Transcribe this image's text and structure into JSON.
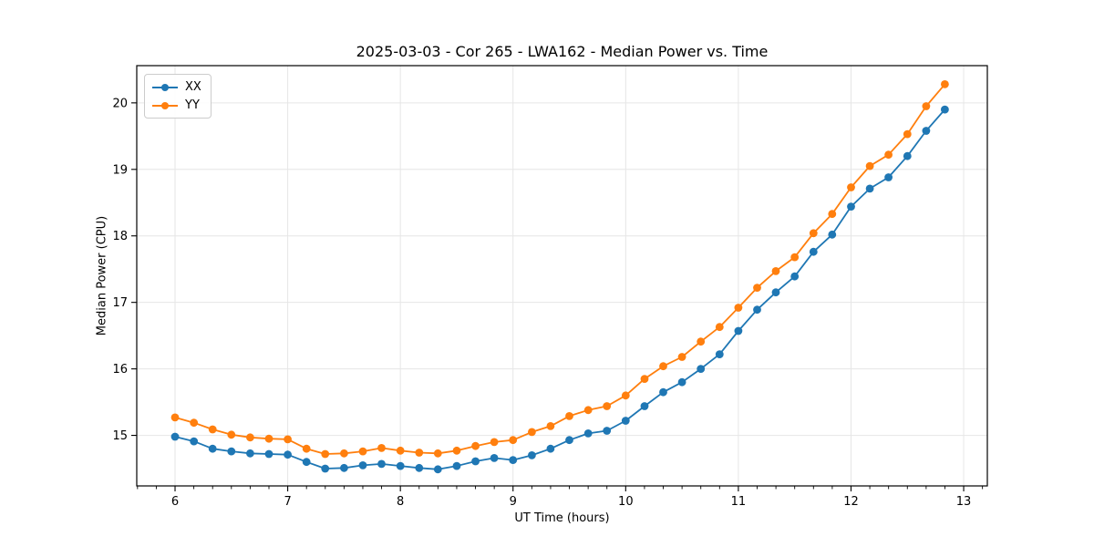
{
  "title": "2025-03-03 - Cor 265 - LWA162 - Median Power vs. Time",
  "chart_data": {
    "type": "line",
    "title": "2025-03-03 - Cor 265 - LWA162 - Median Power vs. Time",
    "xlabel": "UT Time (hours)",
    "ylabel": "Median Power (CPU)",
    "xlim": [
      5.66,
      13.21
    ],
    "ylim": [
      14.24,
      20.56
    ],
    "x_ticks": [
      6,
      7,
      8,
      9,
      10,
      11,
      12,
      13
    ],
    "y_ticks": [
      15,
      16,
      17,
      18,
      19,
      20
    ],
    "x_minor_tick_interval": 0.16667,
    "grid": true,
    "grid_color": "#e6e6e6",
    "legend_position": "upper-left",
    "x": [
      6.0,
      6.167,
      6.333,
      6.5,
      6.667,
      6.833,
      7.0,
      7.167,
      7.333,
      7.5,
      7.667,
      7.833,
      8.0,
      8.167,
      8.333,
      8.5,
      8.667,
      8.833,
      9.0,
      9.167,
      9.333,
      9.5,
      9.667,
      9.833,
      10.0,
      10.167,
      10.333,
      10.5,
      10.667,
      10.833,
      11.0,
      11.167,
      11.333,
      11.5,
      11.667,
      11.833,
      12.0,
      12.167,
      12.333,
      12.5,
      12.667,
      12.833
    ],
    "series": [
      {
        "name": "XX",
        "color": "#1f77b4",
        "values": [
          14.98,
          14.91,
          14.8,
          14.76,
          14.73,
          14.72,
          14.71,
          14.6,
          14.5,
          14.51,
          14.55,
          14.57,
          14.54,
          14.51,
          14.49,
          14.54,
          14.61,
          14.66,
          14.63,
          14.7,
          14.8,
          14.93,
          15.03,
          15.07,
          15.22,
          15.44,
          15.65,
          15.8,
          16.0,
          16.22,
          16.57,
          16.89,
          17.15,
          17.39,
          17.76,
          18.02,
          18.44,
          18.71,
          18.88,
          19.2,
          19.58,
          19.9
        ]
      },
      {
        "name": "YY",
        "color": "#ff7f0e",
        "values": [
          15.27,
          15.19,
          15.09,
          15.01,
          14.97,
          14.95,
          14.94,
          14.8,
          14.72,
          14.73,
          14.76,
          14.81,
          14.77,
          14.74,
          14.73,
          14.77,
          14.84,
          14.9,
          14.93,
          15.05,
          15.14,
          15.29,
          15.38,
          15.44,
          15.6,
          15.85,
          16.04,
          16.18,
          16.41,
          16.63,
          16.92,
          17.22,
          17.47,
          17.68,
          18.04,
          18.33,
          18.73,
          19.05,
          19.22,
          19.53,
          19.95,
          20.28
        ]
      }
    ]
  }
}
